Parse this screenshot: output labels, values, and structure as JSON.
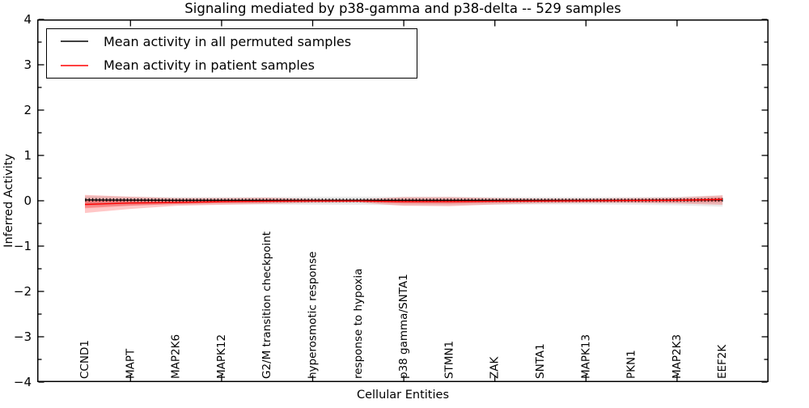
{
  "title": "Signaling mediated by p38-gamma and p38-delta -- 529 samples",
  "axes": {
    "ylabel": "Inferred Activity",
    "xlabel": "Cellular Entities",
    "ytick_labels": [
      "4",
      "3",
      "2",
      "1",
      "0",
      "−1",
      "−2",
      "−3",
      "−4"
    ]
  },
  "legend": {
    "entries": [
      {
        "label": "Mean activity in all permuted samples",
        "color": "#000000"
      },
      {
        "label": "Mean activity in patient samples",
        "color": "#ff0000"
      }
    ]
  },
  "colors": {
    "permuted_line": "#000000",
    "patient_line": "#ff0000",
    "patient_band": "#ff0000",
    "permuted_band": "#888888",
    "spine": "#000000"
  },
  "chart_data": {
    "type": "line",
    "title": "Signaling mediated by p38-gamma and p38-delta -- 529 samples",
    "xlabel": "Cellular Entities",
    "ylabel": "Inferred Activity",
    "ylim": [
      -4,
      4
    ],
    "yticks": [
      4,
      3,
      2,
      1,
      0,
      -1,
      -2,
      -3,
      -4
    ],
    "y_minor_step": 0.5,
    "x_major_tick_indices": [
      1,
      3,
      5,
      7,
      9,
      11,
      13
    ],
    "grid": false,
    "legend_position": "upper left",
    "categories": [
      "CCND1",
      "MAPT",
      "MAP2K6",
      "MAPK12",
      "G2/M transition checkpoint",
      "hyperosmotic response",
      "response to hypoxia",
      "p38 gamma/SNTA1",
      "STMN1",
      "ZAK",
      "SNTA1",
      "MAPK13",
      "PKN1",
      "MAP2K3",
      "EEF2K"
    ],
    "series": [
      {
        "name": "Mean activity in all permuted samples",
        "color": "#000000",
        "values": [
          0.02,
          0.015,
          0.01,
          0.01,
          0.01,
          0.01,
          0.01,
          0.01,
          0.01,
          0.01,
          0.01,
          0.01,
          0.01,
          0.015,
          0.02
        ],
        "band_upper": [
          0.11,
          0.09,
          0.08,
          0.08,
          0.08,
          0.09,
          0.09,
          0.09,
          0.09,
          0.08,
          0.08,
          0.08,
          0.08,
          0.09,
          0.12
        ],
        "band_lower": [
          -0.13,
          -0.1,
          -0.09,
          -0.08,
          -0.08,
          -0.09,
          -0.09,
          -0.1,
          -0.1,
          -0.09,
          -0.08,
          -0.08,
          -0.09,
          -0.1,
          -0.13
        ]
      },
      {
        "name": "Mean activity in patient samples",
        "color": "#ff0000",
        "values": [
          -0.08,
          -0.05,
          -0.04,
          -0.02,
          -0.01,
          -0.005,
          -0.005,
          -0.02,
          -0.02,
          -0.01,
          -0.005,
          0.0,
          0.005,
          0.01,
          0.03
        ],
        "band_upper": [
          0.13,
          0.09,
          0.06,
          0.06,
          0.07,
          0.04,
          0.03,
          0.08,
          0.08,
          0.06,
          0.05,
          0.05,
          0.06,
          0.07,
          0.12
        ],
        "band_lower": [
          -0.27,
          -0.18,
          -0.11,
          -0.09,
          -0.07,
          -0.05,
          -0.04,
          -0.11,
          -0.12,
          -0.08,
          -0.06,
          -0.05,
          -0.05,
          -0.06,
          -0.09
        ]
      }
    ]
  }
}
